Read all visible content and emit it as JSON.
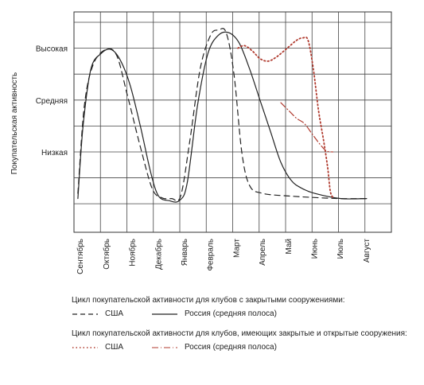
{
  "chart_data": {
    "type": "line",
    "ylabel": "Покупательская активность",
    "xlabel": "",
    "title": "",
    "categories": [
      "Сентябрь",
      "Октябрь",
      "Ноябрь",
      "Декабрь",
      "Январь",
      "Февраль",
      "Март",
      "Апрель",
      "Май",
      "Июнь",
      "Июль",
      "Август"
    ],
    "y_levels": [
      {
        "label": "Низкая",
        "value": 1
      },
      {
        "label": "Средняя",
        "value": 2
      },
      {
        "label": "Высокая",
        "value": 3
      }
    ],
    "xlim": [
      -0.25,
      11.95
    ],
    "ylim": [
      -0.55,
      3.7
    ],
    "grid": true,
    "groups": [
      {
        "title": "Цикл покупательской активности для клубов с закрытыми сооружениями:",
        "series": [
          {
            "name": "США",
            "style": "dashed",
            "color": "#222222",
            "points": [
              [
                -0.1,
                0.2
              ],
              [
                0.15,
                1.9
              ],
              [
                0.5,
                2.7
              ],
              [
                1.0,
                2.98
              ],
              [
                1.4,
                2.85
              ],
              [
                1.8,
                2.1
              ],
              [
                2.3,
                1.1
              ],
              [
                2.75,
                0.3
              ],
              [
                3.1,
                0.12
              ],
              [
                3.5,
                0.1
              ],
              [
                3.85,
                0.15
              ],
              [
                4.2,
                1.2
              ],
              [
                4.6,
                2.6
              ],
              [
                5.0,
                3.25
              ],
              [
                5.3,
                3.35
              ],
              [
                5.6,
                3.3
              ],
              [
                5.9,
                2.5
              ],
              [
                6.2,
                1.0
              ],
              [
                6.5,
                0.35
              ],
              [
                7.0,
                0.2
              ],
              [
                8.0,
                0.15
              ],
              [
                9.0,
                0.12
              ],
              [
                10.0,
                0.1
              ],
              [
                11.0,
                0.1
              ]
            ]
          },
          {
            "name": "Россия (средняя полоса)",
            "style": "solid",
            "color": "#222222",
            "points": [
              [
                -0.1,
                0.1
              ],
              [
                0.1,
                1.5
              ],
              [
                0.4,
                2.6
              ],
              [
                0.8,
                2.9
              ],
              [
                1.15,
                2.98
              ],
              [
                1.5,
                2.8
              ],
              [
                1.9,
                2.3
              ],
              [
                2.3,
                1.5
              ],
              [
                2.7,
                0.6
              ],
              [
                3.0,
                0.15
              ],
              [
                3.4,
                0.06
              ],
              [
                3.8,
                0.06
              ],
              [
                4.1,
                0.4
              ],
              [
                4.5,
                1.9
              ],
              [
                4.9,
                2.9
              ],
              [
                5.3,
                3.25
              ],
              [
                5.7,
                3.3
              ],
              [
                6.1,
                3.1
              ],
              [
                6.5,
                2.6
              ],
              [
                6.9,
                2.0
              ],
              [
                7.3,
                1.4
              ],
              [
                7.7,
                0.8
              ],
              [
                8.1,
                0.45
              ],
              [
                8.5,
                0.3
              ],
              [
                9.0,
                0.2
              ],
              [
                10.0,
                0.1
              ],
              [
                11.0,
                0.1
              ]
            ]
          }
        ]
      },
      {
        "title": "Цикл покупательской активности для клубов, имеющих закрытые и открытые сооружения:",
        "series": [
          {
            "name": "США",
            "style": "dotted",
            "color": "#b03a2e",
            "points": [
              [
                6.05,
                3.0
              ],
              [
                6.3,
                3.05
              ],
              [
                6.6,
                2.95
              ],
              [
                6.9,
                2.8
              ],
              [
                7.2,
                2.75
              ],
              [
                7.5,
                2.82
              ],
              [
                7.9,
                2.98
              ],
              [
                8.3,
                3.15
              ],
              [
                8.55,
                3.2
              ],
              [
                8.75,
                3.15
              ],
              [
                8.95,
                2.6
              ],
              [
                9.15,
                1.8
              ],
              [
                9.35,
                1.2
              ],
              [
                9.5,
                0.7
              ],
              [
                9.6,
                0.25
              ],
              [
                9.7,
                0.12
              ]
            ]
          },
          {
            "name": "Россия (средняя полоса)",
            "style": "dashdot",
            "color": "#b03a2e",
            "points": [
              [
                7.7,
                1.95
              ],
              [
                8.0,
                1.8
              ],
              [
                8.3,
                1.65
              ],
              [
                8.6,
                1.55
              ],
              [
                8.9,
                1.35
              ],
              [
                9.2,
                1.15
              ],
              [
                9.45,
                1.02
              ],
              [
                9.7,
                1.0
              ]
            ]
          }
        ]
      }
    ]
  }
}
